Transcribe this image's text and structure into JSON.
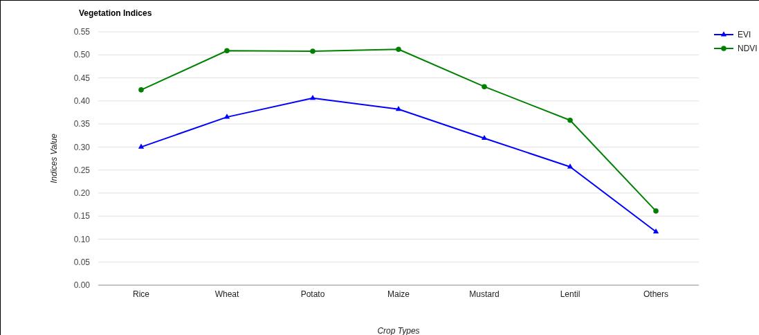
{
  "chart_data": {
    "type": "line",
    "title": "Vegetation Indices",
    "xlabel": "Crop Types",
    "ylabel": "Indices Value",
    "categories": [
      "Rice",
      "Wheat",
      "Potato",
      "Maize",
      "Mustard",
      "Lentil",
      "Others"
    ],
    "series": [
      {
        "name": "EVI",
        "color": "#0000ff",
        "marker": "triangle",
        "values": [
          0.3,
          0.365,
          0.406,
          0.382,
          0.319,
          0.257,
          0.116
        ]
      },
      {
        "name": "NDVI",
        "color": "#008000",
        "marker": "circle",
        "values": [
          0.424,
          0.509,
          0.508,
          0.512,
          0.431,
          0.358,
          0.161
        ]
      }
    ],
    "ylim": [
      0,
      0.55
    ],
    "yticks": [
      {
        "value": 0,
        "label": "0.00"
      },
      {
        "value": 0.05,
        "label": "0.05"
      },
      {
        "value": 0.1,
        "label": "0.10"
      },
      {
        "value": 0.15,
        "label": "0.15"
      },
      {
        "value": 0.2,
        "label": "0.20"
      },
      {
        "value": 0.25,
        "label": "0.25"
      },
      {
        "value": 0.3,
        "label": "0.30"
      },
      {
        "value": 0.35,
        "label": "0.35"
      },
      {
        "value": 0.4,
        "label": "0.40"
      },
      {
        "value": 0.45,
        "label": "0.45"
      },
      {
        "value": 0.5,
        "label": "0.50"
      },
      {
        "value": 0.55,
        "label": "0.55"
      }
    ],
    "grid": "y",
    "legend": "top right",
    "line_style": "solid"
  }
}
